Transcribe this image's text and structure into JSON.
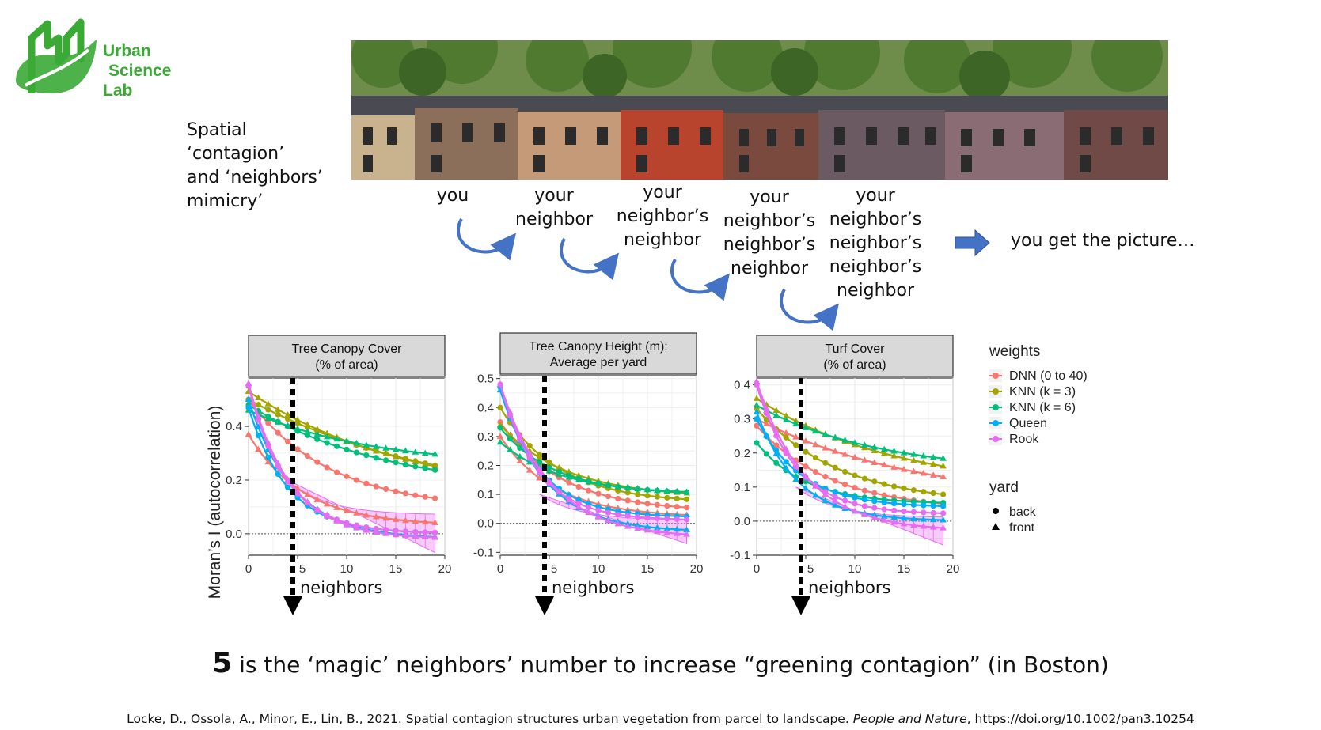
{
  "logo": {
    "lines": [
      "Urban",
      "Science",
      "Lab"
    ]
  },
  "caption": {
    "lines": [
      "Spatial ‘contagion’",
      "and ‘neighbors’",
      "mimicry’"
    ]
  },
  "neighbor_labels": [
    {
      "lines": [
        "you"
      ]
    },
    {
      "lines": [
        "your",
        "neighbor"
      ]
    },
    {
      "lines": [
        "your",
        "neighbor’s",
        "neighbor"
      ]
    },
    {
      "lines": [
        "your",
        "neighbor’s",
        "neighbor’s",
        "neighbor"
      ]
    },
    {
      "lines": [
        "your",
        "neighbor’s",
        "neighbor’s",
        "neighbor’s",
        "neighbor"
      ]
    }
  ],
  "picture_text": "you get the picture…",
  "colors": {
    "DNN": "#F8766D",
    "KNN3": "#A3A500",
    "KNN6": "#00BF7D",
    "Queen": "#00B0F6",
    "Rook": "#E76BF3",
    "arrow": "#4472C4",
    "logo": "#3aaa35"
  },
  "chart_data": {
    "type": "line",
    "ylabel": "Moran’s I (autocorrelation)",
    "xlabel_annotation": "neighbors",
    "marker_x": 5,
    "legend": {
      "weights_title": "weights",
      "weights": [
        "DNN (0 to 40)",
        "KNN (k = 3)",
        "KNN (k = 6)",
        "Queen",
        "Rook"
      ],
      "yard_title": "yard",
      "yard": [
        {
          "label": "back",
          "shape": "circle"
        },
        {
          "label": "front",
          "shape": "triangle"
        }
      ]
    },
    "panels": [
      {
        "title": [
          "Tree Canopy Cover",
          "(% of area)"
        ],
        "xlim": [
          0,
          20
        ],
        "ylim": [
          -0.08,
          0.58
        ],
        "yticks": [
          0.0,
          0.2,
          0.4
        ],
        "ytick_labels": [
          "0.0",
          "0.2",
          "0.4"
        ],
        "xticks": [
          0,
          5,
          10,
          15,
          20
        ],
        "xtick_labels": [
          "0",
          "5",
          "10",
          "15",
          "20"
        ],
        "series": [
          {
            "key": "DNN",
            "yard": "back",
            "y0": 0.5,
            "yinf": 0.09,
            "k": 0.12
          },
          {
            "key": "DNN",
            "yard": "front",
            "y0": 0.37,
            "yinf": 0.03,
            "k": 0.18
          },
          {
            "key": "KNN3",
            "yard": "back",
            "y0": 0.5,
            "yinf": 0.1,
            "k": 0.05
          },
          {
            "key": "KNN3",
            "yard": "front",
            "y0": 0.53,
            "yinf": 0.12,
            "k": 0.06
          },
          {
            "key": "KNN6",
            "yard": "back",
            "y0": 0.48,
            "yinf": 0.15,
            "k": 0.07
          },
          {
            "key": "KNN6",
            "yard": "front",
            "y0": 0.46,
            "yinf": 0.25,
            "k": 0.08
          },
          {
            "key": "Queen",
            "yard": "back",
            "y0": 0.47,
            "yinf": 0.0,
            "k": 0.25
          },
          {
            "key": "Queen",
            "yard": "front",
            "y0": 0.5,
            "yinf": -0.02,
            "k": 0.22
          },
          {
            "key": "Rook",
            "yard": "back",
            "y0": 0.55,
            "yinf": 0.0,
            "k": 0.26
          },
          {
            "key": "Rook",
            "yard": "front",
            "y0": 0.56,
            "yinf": -0.02,
            "k": 0.24
          }
        ],
        "band": {
          "key": "Rook",
          "upper_y0": 0.2,
          "upper_yinf": 0.07,
          "lower_y0": 0.2,
          "lower_end": -0.07
        }
      },
      {
        "title": [
          "Tree Canopy Height (m):",
          "Average per yard"
        ],
        "xlim": [
          0,
          20
        ],
        "ylim": [
          -0.11,
          0.51
        ],
        "yticks": [
          -0.1,
          0.0,
          0.1,
          0.2,
          0.3,
          0.4,
          0.5
        ],
        "ytick_labels": [
          "-0.1",
          "0.0",
          "0.1",
          "0.2",
          "0.3",
          "0.4",
          "0.5"
        ],
        "xticks": [
          0,
          5,
          10,
          15,
          20
        ],
        "xtick_labels": [
          "0",
          "5",
          "10",
          "15",
          "20"
        ],
        "series": [
          {
            "key": "DNN",
            "yard": "back",
            "y0": 0.35,
            "yinf": 0.04,
            "k": 0.16
          },
          {
            "key": "DNN",
            "yard": "front",
            "y0": 0.3,
            "yinf": 0.02,
            "k": 0.18
          },
          {
            "key": "KNN3",
            "yard": "back",
            "y0": 0.4,
            "yinf": 0.07,
            "k": 0.17
          },
          {
            "key": "KNN3",
            "yard": "front",
            "y0": 0.34,
            "yinf": 0.09,
            "k": 0.15
          },
          {
            "key": "KNN6",
            "yard": "back",
            "y0": 0.33,
            "yinf": 0.1,
            "k": 0.18
          },
          {
            "key": "KNN6",
            "yard": "front",
            "y0": 0.28,
            "yinf": 0.1,
            "k": 0.16
          },
          {
            "key": "Queen",
            "yard": "back",
            "y0": 0.47,
            "yinf": 0.02,
            "k": 0.25
          },
          {
            "key": "Queen",
            "yard": "front",
            "y0": 0.46,
            "yinf": -0.03,
            "k": 0.22
          },
          {
            "key": "Rook",
            "yard": "back",
            "y0": 0.48,
            "yinf": 0.01,
            "k": 0.26
          },
          {
            "key": "Rook",
            "yard": "front",
            "y0": 0.48,
            "yinf": -0.05,
            "k": 0.2
          }
        ],
        "band": {
          "key": "Rook",
          "upper_y0": 0.1,
          "upper_yinf": 0.01,
          "lower_y0": 0.1,
          "lower_end": -0.07
        }
      },
      {
        "title": [
          "Turf Cover",
          "(% of area)"
        ],
        "xlim": [
          0,
          20
        ],
        "ylim": [
          -0.1,
          0.42
        ],
        "yticks": [
          -0.1,
          0.0,
          0.1,
          0.2,
          0.3,
          0.4
        ],
        "ytick_labels": [
          "-0.1",
          "0.0",
          "0.1",
          "0.2",
          "0.3",
          "0.4"
        ],
        "xticks": [
          0,
          5,
          10,
          15,
          20
        ],
        "xtick_labels": [
          "0",
          "5",
          "10",
          "15",
          "20"
        ],
        "series": [
          {
            "key": "DNN",
            "yard": "back",
            "y0": 0.28,
            "yinf": 0.03,
            "k": 0.13
          },
          {
            "key": "DNN",
            "yard": "front",
            "y0": 0.3,
            "yinf": 0.05,
            "k": 0.06
          },
          {
            "key": "KNN3",
            "yard": "back",
            "y0": 0.33,
            "yinf": 0.05,
            "k": 0.12
          },
          {
            "key": "KNN3",
            "yard": "front",
            "y0": 0.36,
            "yinf": 0.09,
            "k": 0.07
          },
          {
            "key": "KNN6",
            "yard": "back",
            "y0": 0.23,
            "yinf": 0.05,
            "k": 0.2
          },
          {
            "key": "KNN6",
            "yard": "front",
            "y0": 0.34,
            "yinf": 0.14,
            "k": 0.08
          },
          {
            "key": "Queen",
            "yard": "back",
            "y0": 0.3,
            "yinf": 0.04,
            "k": 0.22
          },
          {
            "key": "Queen",
            "yard": "front",
            "y0": 0.32,
            "yinf": 0.0,
            "k": 0.24
          },
          {
            "key": "Rook",
            "yard": "back",
            "y0": 0.4,
            "yinf": 0.02,
            "k": 0.25
          },
          {
            "key": "Rook",
            "yard": "front",
            "y0": 0.41,
            "yinf": -0.03,
            "k": 0.2
          }
        ],
        "band": {
          "key": "Rook",
          "upper_y0": 0.1,
          "upper_yinf": 0.01,
          "lower_y0": 0.1,
          "lower_end": -0.07
        }
      }
    ]
  },
  "magic": {
    "number": "5",
    "text": " is the ‘magic’ neighbors’ number to increase “greening contagion” (in Boston)"
  },
  "citation": {
    "before": "Locke, D., Ossola, A., Minor, E., Lin, B., 2021. Spatial contagion structures urban vegetation from parcel to landscape. ",
    "journal": "People and Nature",
    "after": ", https://doi.org/10.1002/pan3.10254"
  }
}
